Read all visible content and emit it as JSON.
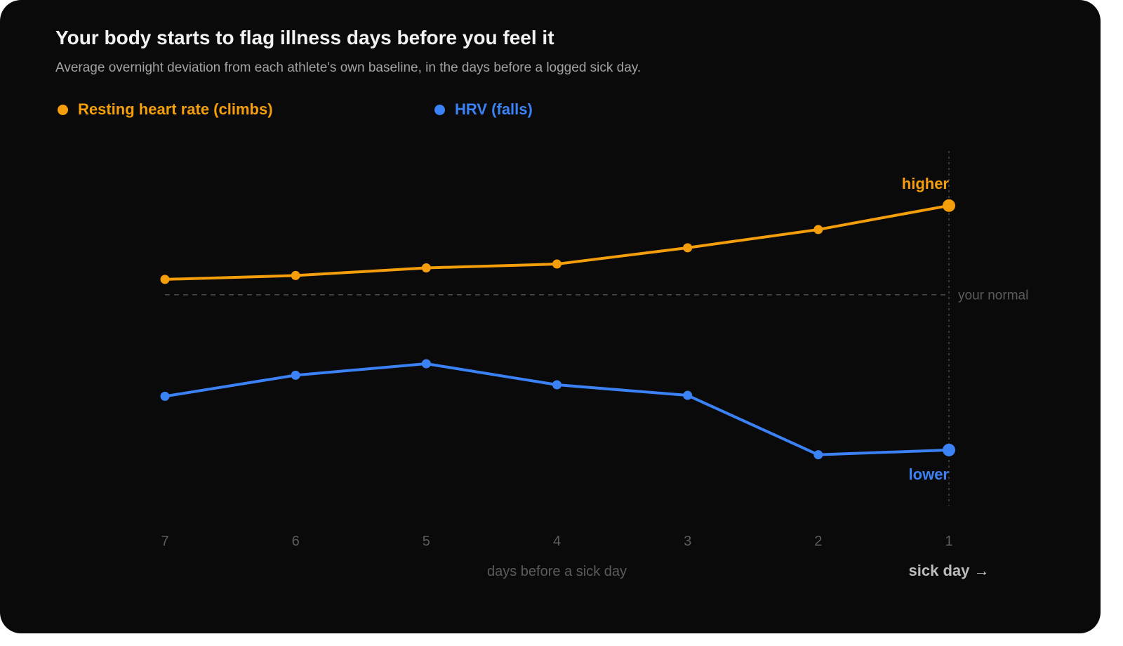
{
  "title": "Your body starts to flag illness days before you feel it",
  "subtitle": "Average overnight deviation from each athlete's own baseline, in the days before a logged sick day.",
  "colors": {
    "background": "#0a0a0b",
    "rhr": "#f59e0b",
    "hrv": "#3b82f6",
    "baseline": "#4a4a4a",
    "muted": "#5c5c5c"
  },
  "chart_data": {
    "type": "line",
    "title": "Your body starts to flag illness days before you feel it",
    "subtitle": "Average overnight deviation from each athlete's own baseline, in the days before a logged sick day.",
    "xlabel": "days before a sick day",
    "x": [
      "7",
      "6",
      "5",
      "4",
      "3",
      "2",
      "1"
    ],
    "baseline_label": "your normal",
    "baseline_value": 0,
    "ylim": [
      -2.2,
      1.5
    ],
    "end_marker_label": "sick day →",
    "legend_placement": "top-left",
    "grid": false,
    "series": [
      {
        "name": "Resting heart rate (climbs)",
        "color": "#f59e0b",
        "end_label": "higher",
        "values": [
          0.16,
          0.2,
          0.28,
          0.32,
          0.49,
          0.68,
          0.93
        ]
      },
      {
        "name": "HRV (falls)",
        "color": "#3b82f6",
        "end_label": "lower",
        "values": [
          -1.06,
          -0.84,
          -0.72,
          -0.94,
          -1.05,
          -1.67,
          -1.62
        ]
      }
    ]
  }
}
